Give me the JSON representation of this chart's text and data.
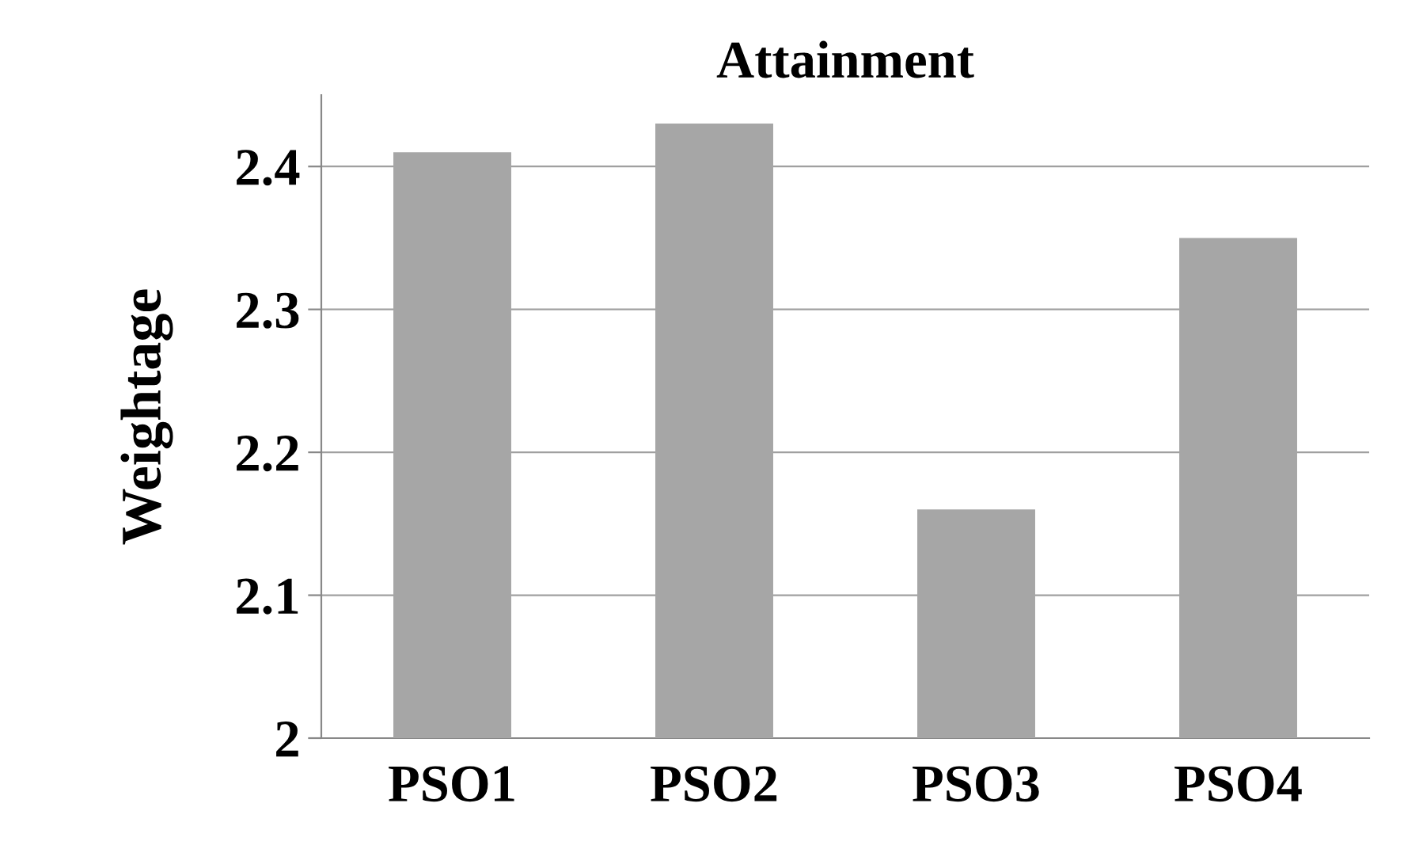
{
  "chart_data": {
    "type": "bar",
    "title": "Attainment",
    "ylabel": "Weightage",
    "categories": [
      "PSO1",
      "PSO2",
      "PSO3",
      "PSO4"
    ],
    "values": [
      2.41,
      2.43,
      2.16,
      2.35
    ],
    "color": "#a6a6a6",
    "ylim": [
      2,
      2.45
    ],
    "yticks": [
      2,
      2.1,
      2.2,
      2.3,
      2.4
    ],
    "grid": "y",
    "legend": false
  }
}
